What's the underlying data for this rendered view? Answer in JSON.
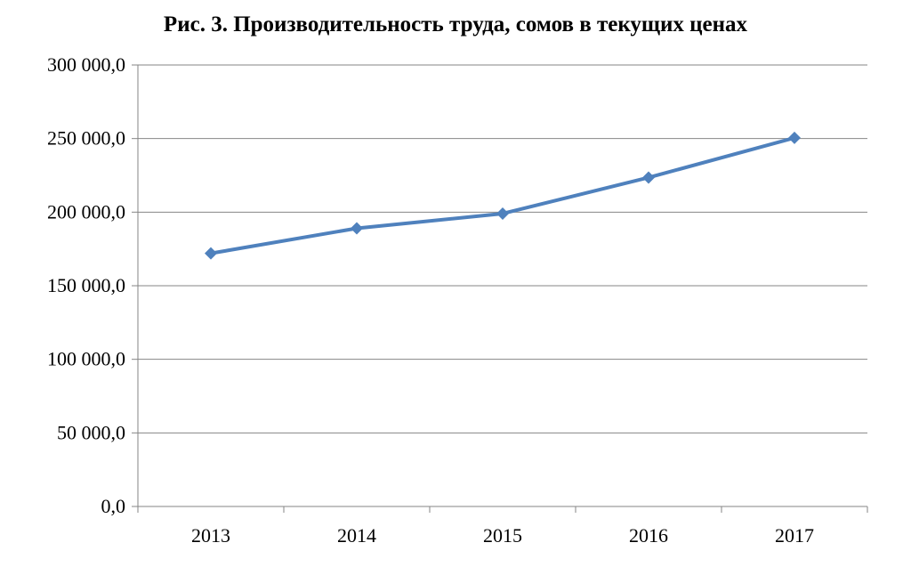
{
  "chart_data": {
    "type": "line",
    "title": "Рис. 3. Производительность труда, сомов в текущих ценах",
    "xlabel": "",
    "ylabel": "",
    "categories": [
      "2013",
      "2014",
      "2015",
      "2016",
      "2017"
    ],
    "series": [
      {
        "values": [
          172000,
          189000,
          199000,
          223500,
          250500
        ]
      }
    ],
    "ylim": [
      0,
      300000
    ],
    "y_ticks": [
      0,
      50000,
      100000,
      150000,
      200000,
      250000,
      300000
    ],
    "y_tick_labels": [
      "0,0",
      "50 000,0",
      "100 000,0",
      "150 000,0",
      "200 000,0",
      "250 000,0",
      "300 000,0"
    ],
    "grid": true,
    "legend": "none",
    "colors": {
      "line": "#4f81bd",
      "grid": "#868686",
      "axis": "#868686"
    }
  }
}
